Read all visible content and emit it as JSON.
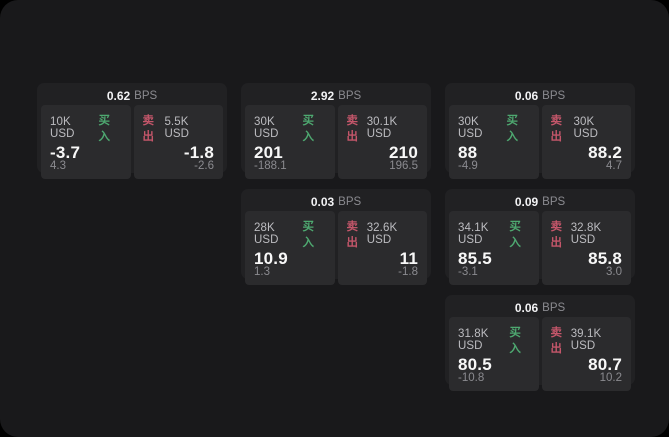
{
  "labels": {
    "buy": "买入",
    "sell": "卖出",
    "bps": "BPS"
  },
  "colors": {
    "background": "#000000",
    "surface": "#19191b",
    "card": "#212123",
    "panel": "#2b2b2d",
    "buy_green": "#4ea870",
    "sell_red": "#c4566a",
    "text_primary": "#f8f8f8",
    "text_muted": "#8b8b90"
  },
  "cards": [
    {
      "col": 1,
      "row": 1,
      "bps": "0.62",
      "buy": {
        "amount": "10K USD",
        "main": "-3.7",
        "sub": "4.3"
      },
      "sell": {
        "amount": "5.5K USD",
        "main": "-1.8",
        "sub": "-2.6"
      }
    },
    {
      "col": 2,
      "row": 1,
      "bps": "2.92",
      "buy": {
        "amount": "30K USD",
        "main": "201",
        "sub": "-188.1"
      },
      "sell": {
        "amount": "30.1K USD",
        "main": "210",
        "sub": "196.5"
      }
    },
    {
      "col": 3,
      "row": 1,
      "bps": "0.06",
      "buy": {
        "amount": "30K USD",
        "main": "88",
        "sub": "-4.9"
      },
      "sell": {
        "amount": "30K USD",
        "main": "88.2",
        "sub": "4.7"
      }
    },
    {
      "col": 2,
      "row": 2,
      "bps": "0.03",
      "buy": {
        "amount": "28K USD",
        "main": "10.9",
        "sub": "1.3"
      },
      "sell": {
        "amount": "32.6K USD",
        "main": "11",
        "sub": "-1.8"
      }
    },
    {
      "col": 3,
      "row": 2,
      "bps": "0.09",
      "buy": {
        "amount": "34.1K USD",
        "main": "85.5",
        "sub": "-3.1"
      },
      "sell": {
        "amount": "32.8K USD",
        "main": "85.8",
        "sub": "3.0"
      }
    },
    {
      "col": 3,
      "row": 3,
      "bps": "0.06",
      "buy": {
        "amount": "31.8K USD",
        "main": "80.5",
        "sub": "-10.8"
      },
      "sell": {
        "amount": "39.1K USD",
        "main": "80.7",
        "sub": "10.2"
      }
    }
  ]
}
